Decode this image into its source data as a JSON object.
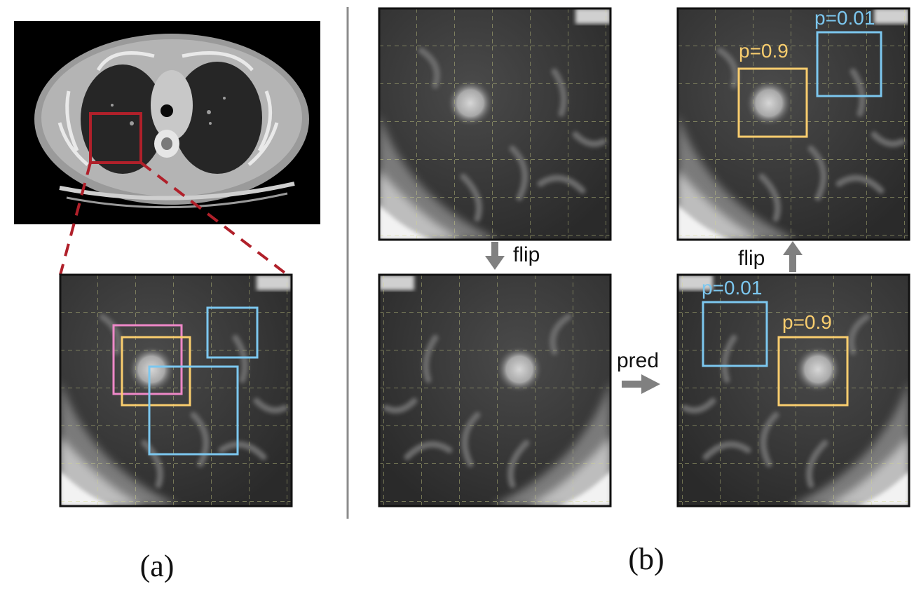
{
  "panel_a": {
    "label": "(a)"
  },
  "panel_b": {
    "label": "(b)",
    "arrow_flip_down": "flip",
    "arrow_flip_up": "flip",
    "arrow_pred": "pred",
    "pred_flipped": {
      "box1_score": "p=0.01",
      "box2_score": "p=0.9"
    },
    "pred_restored": {
      "box1_score": "p=0.9",
      "box2_score": "p=0.01"
    }
  },
  "colors": {
    "crop_box": "#b0202a",
    "pink_box": "#ee88c8",
    "orange_box": "#f9cd6e",
    "blue_box": "#7cc7ef",
    "arrow": "#808080",
    "grid": "#d4d88a",
    "divider": "#8c8c8c"
  }
}
